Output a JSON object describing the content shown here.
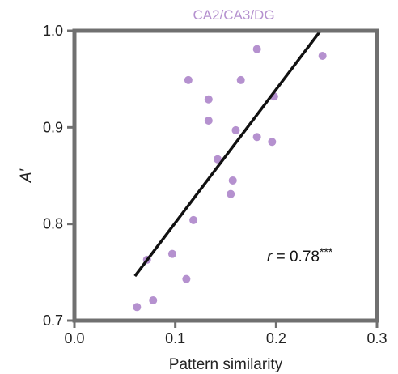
{
  "chart_data": {
    "type": "scatter",
    "title": "CA2/CA3/DG",
    "xlabel": "Pattern similarity",
    "ylabel": "A′",
    "xlim": [
      0.0,
      0.3
    ],
    "ylim": [
      0.7,
      1.0
    ],
    "xticks": [
      0.0,
      0.1,
      0.2,
      0.3
    ],
    "xtick_labels": [
      "0.0",
      "0.1",
      "0.2",
      "0.3"
    ],
    "yticks": [
      0.7,
      0.8,
      0.9,
      1.0
    ],
    "ytick_labels": [
      "0.7",
      "0.8",
      "0.9",
      "1.0"
    ],
    "grid": false,
    "points": [
      {
        "x": 0.062,
        "y": 0.714
      },
      {
        "x": 0.078,
        "y": 0.721
      },
      {
        "x": 0.072,
        "y": 0.763
      },
      {
        "x": 0.097,
        "y": 0.769
      },
      {
        "x": 0.111,
        "y": 0.743
      },
      {
        "x": 0.118,
        "y": 0.804
      },
      {
        "x": 0.113,
        "y": 0.949
      },
      {
        "x": 0.133,
        "y": 0.929
      },
      {
        "x": 0.133,
        "y": 0.907
      },
      {
        "x": 0.142,
        "y": 0.867
      },
      {
        "x": 0.155,
        "y": 0.831
      },
      {
        "x": 0.157,
        "y": 0.845
      },
      {
        "x": 0.16,
        "y": 0.897
      },
      {
        "x": 0.165,
        "y": 0.949
      },
      {
        "x": 0.181,
        "y": 0.981
      },
      {
        "x": 0.181,
        "y": 0.89
      },
      {
        "x": 0.196,
        "y": 0.885
      },
      {
        "x": 0.198,
        "y": 0.932
      },
      {
        "x": 0.246,
        "y": 0.974
      }
    ],
    "fit_line": {
      "x": [
        0.06,
        0.244
      ],
      "y": [
        0.746,
        1.0
      ]
    },
    "annotation": {
      "r_label": "r",
      "equals": " = ",
      "value": "0.78",
      "stars": "***"
    },
    "colors": {
      "points": "#b591cf",
      "title": "#b591cf",
      "line": "#111111",
      "axes": "#707070"
    }
  }
}
